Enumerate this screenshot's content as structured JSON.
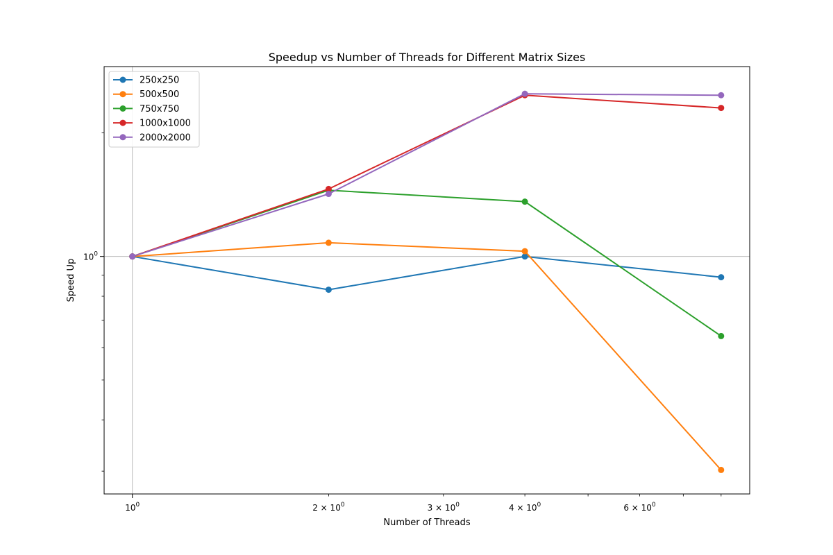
{
  "chart_data": {
    "type": "line",
    "title": "Speedup vs Number of Threads for Different Matrix Sizes",
    "xlabel": "Number of Threads",
    "ylabel": "Speed Up",
    "xscale": "log",
    "yscale": "log",
    "xlim": [
      0.905,
      8.85
    ],
    "ylim": [
      0.264,
      2.9
    ],
    "grid": "lines at x=1 and y=1",
    "legend_position": "upper-left",
    "x": [
      1,
      2,
      4,
      8
    ],
    "x_tick_labels": [
      {
        "value": 1,
        "base": "10",
        "exp": "0"
      },
      {
        "value": 2,
        "base": "2 × 10",
        "exp": "0"
      },
      {
        "value": 3,
        "base": "3 × 10",
        "exp": "0"
      },
      {
        "value": 4,
        "base": "4 × 10",
        "exp": "0"
      },
      {
        "value": 6,
        "base": "6 × 10",
        "exp": "0"
      }
    ],
    "y_tick_labels": [
      {
        "value": 1,
        "base": "10",
        "exp": "0"
      }
    ],
    "series": [
      {
        "name": "250x250",
        "color": "#1f77b4",
        "values": [
          1.0,
          0.83,
          1.0,
          0.89
        ]
      },
      {
        "name": "500x500",
        "color": "#ff7f0e",
        "values": [
          1.0,
          1.08,
          1.03,
          0.302
        ]
      },
      {
        "name": "750x750",
        "color": "#2ca02c",
        "values": [
          1.0,
          1.45,
          1.36,
          0.64
        ]
      },
      {
        "name": "1000x1000",
        "color": "#d62728",
        "values": [
          1.0,
          1.46,
          2.47,
          2.3
        ]
      },
      {
        "name": "2000x2000",
        "color": "#9467bd",
        "values": [
          1.0,
          1.42,
          2.49,
          2.47
        ]
      }
    ]
  }
}
